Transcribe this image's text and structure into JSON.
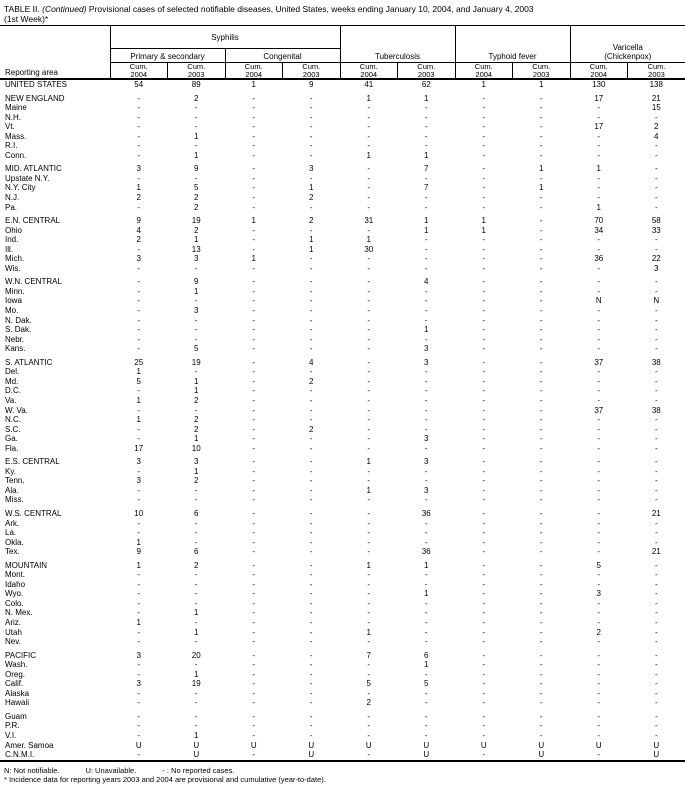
{
  "title": {
    "prefix": "TABLE II. ",
    "continued": "(Continued)",
    "rest": " Provisional cases of selected notifiable diseases, United States, weeks ending January 10, 2004, and January 4, 2003",
    "line2": "(1st Week)*"
  },
  "header": {
    "reporting_area": "Reporting area",
    "syphilis": "Syphilis",
    "primary_secondary": "Primary & secondary",
    "congenital": "Congenital",
    "tuberculosis": "Tuberculosis",
    "typhoid": "Typhoid fever",
    "varicella_line1": "Varicella",
    "varicella_line2": "(Chickenpox)",
    "cum_label": "Cum.",
    "years": [
      "2004",
      "2003"
    ]
  },
  "rows": [
    {
      "area": "UNITED STATES",
      "values": [
        "54",
        "89",
        "1",
        "9",
        "41",
        "62",
        "1",
        "1",
        "130",
        "138"
      ]
    },
    {
      "area": "NEW ENGLAND",
      "gap": true,
      "values": [
        "-",
        "2",
        "-",
        "-",
        "1",
        "1",
        "-",
        "-",
        "17",
        "21"
      ]
    },
    {
      "area": "Maine",
      "values": [
        "-",
        "-",
        "-",
        "-",
        "-",
        "-",
        "-",
        "-",
        "-",
        "15"
      ]
    },
    {
      "area": "N.H.",
      "values": [
        "-",
        "-",
        "-",
        "-",
        "-",
        "-",
        "-",
        "-",
        "-",
        "-"
      ]
    },
    {
      "area": "Vt.",
      "values": [
        "-",
        "-",
        "-",
        "-",
        "-",
        "-",
        "-",
        "-",
        "17",
        "2"
      ]
    },
    {
      "area": "Mass.",
      "values": [
        "-",
        "1",
        "-",
        "-",
        "-",
        "-",
        "-",
        "-",
        "-",
        "4"
      ]
    },
    {
      "area": "R.I.",
      "values": [
        "-",
        "-",
        "-",
        "-",
        "-",
        "-",
        "-",
        "-",
        "-",
        "-"
      ]
    },
    {
      "area": "Conn.",
      "values": [
        "-",
        "1",
        "-",
        "-",
        "1",
        "1",
        "-",
        "-",
        "-",
        "-"
      ]
    },
    {
      "area": "MID. ATLANTIC",
      "gap": true,
      "values": [
        "3",
        "9",
        "-",
        "3",
        "-",
        "7",
        "-",
        "1",
        "1",
        "-"
      ]
    },
    {
      "area": "Upstate N.Y.",
      "values": [
        "-",
        "-",
        "-",
        "-",
        "-",
        "-",
        "-",
        "-",
        "-",
        "-"
      ]
    },
    {
      "area": "N.Y. City",
      "values": [
        "1",
        "5",
        "-",
        "1",
        "-",
        "7",
        "-",
        "1",
        "-",
        "-"
      ]
    },
    {
      "area": "N.J.",
      "values": [
        "2",
        "2",
        "-",
        "2",
        "-",
        "-",
        "-",
        "-",
        "-",
        "-"
      ]
    },
    {
      "area": "Pa.",
      "values": [
        "-",
        "2",
        "-",
        "-",
        "-",
        "-",
        "-",
        "-",
        "1",
        "-"
      ]
    },
    {
      "area": "E.N. CENTRAL",
      "gap": true,
      "values": [
        "9",
        "19",
        "1",
        "2",
        "31",
        "1",
        "1",
        "-",
        "70",
        "58"
      ]
    },
    {
      "area": "Ohio",
      "values": [
        "4",
        "2",
        "-",
        "-",
        "-",
        "1",
        "1",
        "-",
        "34",
        "33"
      ]
    },
    {
      "area": "Ind.",
      "values": [
        "2",
        "1",
        "-",
        "1",
        "1",
        "-",
        "-",
        "-",
        "-",
        "-"
      ]
    },
    {
      "area": "Ill.",
      "values": [
        "-",
        "13",
        "-",
        "1",
        "30",
        "-",
        "-",
        "-",
        "-",
        "-"
      ]
    },
    {
      "area": "Mich.",
      "values": [
        "3",
        "3",
        "1",
        "-",
        "-",
        "-",
        "-",
        "-",
        "36",
        "22"
      ]
    },
    {
      "area": "Wis.",
      "values": [
        "-",
        "-",
        "-",
        "-",
        "-",
        "-",
        "-",
        "-",
        "-",
        "3"
      ]
    },
    {
      "area": "W.N. CENTRAL",
      "gap": true,
      "values": [
        "-",
        "9",
        "-",
        "-",
        "-",
        "4",
        "-",
        "-",
        "-",
        "-"
      ]
    },
    {
      "area": "Minn.",
      "values": [
        "-",
        "1",
        "-",
        "-",
        "-",
        "-",
        "-",
        "-",
        "-",
        "-"
      ]
    },
    {
      "area": "Iowa",
      "values": [
        "-",
        "-",
        "-",
        "-",
        "-",
        "-",
        "-",
        "-",
        "N",
        "N"
      ]
    },
    {
      "area": "Mo.",
      "values": [
        "-",
        "3",
        "-",
        "-",
        "-",
        "-",
        "-",
        "-",
        "-",
        "-"
      ]
    },
    {
      "area": "N. Dak.",
      "values": [
        "-",
        "-",
        "-",
        "-",
        "-",
        "-",
        "-",
        "-",
        "-",
        "-"
      ]
    },
    {
      "area": "S. Dak.",
      "values": [
        "-",
        "-",
        "-",
        "-",
        "-",
        "1",
        "-",
        "-",
        "-",
        "-"
      ]
    },
    {
      "area": "Nebr.",
      "values": [
        "-",
        "-",
        "-",
        "-",
        "-",
        "-",
        "-",
        "-",
        "-",
        "-"
      ]
    },
    {
      "area": "Kans.",
      "values": [
        "-",
        "5",
        "-",
        "-",
        "-",
        "3",
        "-",
        "-",
        "-",
        "-"
      ]
    },
    {
      "area": "S. ATLANTIC",
      "gap": true,
      "values": [
        "25",
        "19",
        "-",
        "4",
        "-",
        "3",
        "-",
        "-",
        "37",
        "38"
      ]
    },
    {
      "area": "Del.",
      "values": [
        "1",
        "-",
        "-",
        "-",
        "-",
        "-",
        "-",
        "-",
        "-",
        "-"
      ]
    },
    {
      "area": "Md.",
      "values": [
        "5",
        "1",
        "-",
        "2",
        "-",
        "-",
        "-",
        "-",
        "-",
        "-"
      ]
    },
    {
      "area": "D.C.",
      "values": [
        "-",
        "1",
        "-",
        "-",
        "-",
        "-",
        "-",
        "-",
        "-",
        "-"
      ]
    },
    {
      "area": "Va.",
      "values": [
        "1",
        "2",
        "-",
        "-",
        "-",
        "-",
        "-",
        "-",
        "-",
        "-"
      ]
    },
    {
      "area": "W. Va.",
      "values": [
        "-",
        "-",
        "-",
        "-",
        "-",
        "-",
        "-",
        "-",
        "37",
        "38"
      ]
    },
    {
      "area": "N.C.",
      "values": [
        "1",
        "2",
        "-",
        "-",
        "-",
        "-",
        "-",
        "-",
        "-",
        "-"
      ]
    },
    {
      "area": "S.C.",
      "values": [
        "-",
        "2",
        "-",
        "2",
        "-",
        "-",
        "-",
        "-",
        "-",
        "-"
      ]
    },
    {
      "area": "Ga.",
      "values": [
        "-",
        "1",
        "-",
        "-",
        "-",
        "3",
        "-",
        "-",
        "-",
        "-"
      ]
    },
    {
      "area": "Fla.",
      "values": [
        "17",
        "10",
        "-",
        "-",
        "-",
        "-",
        "-",
        "-",
        "-",
        "-"
      ]
    },
    {
      "area": "E.S. CENTRAL",
      "gap": true,
      "values": [
        "3",
        "3",
        "-",
        "-",
        "1",
        "3",
        "-",
        "-",
        "-",
        "-"
      ]
    },
    {
      "area": "Ky.",
      "values": [
        "-",
        "1",
        "-",
        "-",
        "-",
        "-",
        "-",
        "-",
        "-",
        "-"
      ]
    },
    {
      "area": "Tenn.",
      "values": [
        "3",
        "2",
        "-",
        "-",
        "-",
        "-",
        "-",
        "-",
        "-",
        "-"
      ]
    },
    {
      "area": "Ala.",
      "values": [
        "-",
        "-",
        "-",
        "-",
        "1",
        "3",
        "-",
        "-",
        "-",
        "-"
      ]
    },
    {
      "area": "Miss.",
      "values": [
        "-",
        "-",
        "-",
        "-",
        "-",
        "-",
        "-",
        "-",
        "-",
        "-"
      ]
    },
    {
      "area": "W.S. CENTRAL",
      "gap": true,
      "values": [
        "10",
        "6",
        "-",
        "-",
        "-",
        "36",
        "-",
        "-",
        "-",
        "21"
      ]
    },
    {
      "area": "Ark.",
      "values": [
        "-",
        "-",
        "-",
        "-",
        "-",
        "-",
        "-",
        "-",
        "-",
        "-"
      ]
    },
    {
      "area": "La.",
      "values": [
        "-",
        "-",
        "-",
        "-",
        "-",
        "-",
        "-",
        "-",
        "-",
        "-"
      ]
    },
    {
      "area": "Okla.",
      "values": [
        "1",
        "-",
        "-",
        "-",
        "-",
        "-",
        "-",
        "-",
        "-",
        "-"
      ]
    },
    {
      "area": "Tex.",
      "values": [
        "9",
        "6",
        "-",
        "-",
        "-",
        "36",
        "-",
        "-",
        "-",
        "21"
      ]
    },
    {
      "area": "MOUNTAIN",
      "gap": true,
      "values": [
        "1",
        "2",
        "-",
        "-",
        "1",
        "1",
        "-",
        "-",
        "5",
        "-"
      ]
    },
    {
      "area": "Mont.",
      "values": [
        "-",
        "-",
        "-",
        "-",
        "-",
        "-",
        "-",
        "-",
        "-",
        "-"
      ]
    },
    {
      "area": "Idaho",
      "values": [
        "-",
        "-",
        "-",
        "-",
        "-",
        "-",
        "-",
        "-",
        "-",
        "-"
      ]
    },
    {
      "area": "Wyo.",
      "values": [
        "-",
        "-",
        "-",
        "-",
        "-",
        "1",
        "-",
        "-",
        "3",
        "-"
      ]
    },
    {
      "area": "Colo.",
      "values": [
        "-",
        "-",
        "-",
        "-",
        "-",
        "-",
        "-",
        "-",
        "-",
        "-"
      ]
    },
    {
      "area": "N. Mex.",
      "values": [
        "-",
        "1",
        "-",
        "-",
        "-",
        "-",
        "-",
        "-",
        "-",
        "-"
      ]
    },
    {
      "area": "Ariz.",
      "values": [
        "1",
        "-",
        "-",
        "-",
        "-",
        "-",
        "-",
        "-",
        "-",
        "-"
      ]
    },
    {
      "area": "Utah",
      "values": [
        "-",
        "1",
        "-",
        "-",
        "1",
        "-",
        "-",
        "-",
        "2",
        "-"
      ]
    },
    {
      "area": "Nev.",
      "values": [
        "-",
        "-",
        "-",
        "-",
        "-",
        "-",
        "-",
        "-",
        "-",
        "-"
      ]
    },
    {
      "area": "PACIFIC",
      "gap": true,
      "values": [
        "3",
        "20",
        "-",
        "-",
        "7",
        "6",
        "-",
        "-",
        "-",
        "-"
      ]
    },
    {
      "area": "Wash.",
      "values": [
        "-",
        "-",
        "-",
        "-",
        "-",
        "1",
        "-",
        "-",
        "-",
        "-"
      ]
    },
    {
      "area": "Oreg.",
      "values": [
        "-",
        "1",
        "-",
        "-",
        "-",
        "-",
        "-",
        "-",
        "-",
        "-"
      ]
    },
    {
      "area": "Calif.",
      "values": [
        "3",
        "19",
        "-",
        "-",
        "5",
        "5",
        "-",
        "-",
        "-",
        "-"
      ]
    },
    {
      "area": "Alaska",
      "values": [
        "-",
        "-",
        "-",
        "-",
        "-",
        "-",
        "-",
        "-",
        "-",
        "-"
      ]
    },
    {
      "area": "Hawaii",
      "values": [
        "-",
        "-",
        "-",
        "-",
        "2",
        "-",
        "-",
        "-",
        "-",
        "-"
      ]
    },
    {
      "area": "Guam",
      "gap": true,
      "values": [
        "-",
        "-",
        "-",
        "-",
        "-",
        "-",
        "-",
        "-",
        "-",
        "-"
      ]
    },
    {
      "area": "P.R.",
      "values": [
        "-",
        "-",
        "-",
        "-",
        "-",
        "-",
        "-",
        "-",
        "-",
        "-"
      ]
    },
    {
      "area": "V.I.",
      "values": [
        "-",
        "1",
        "-",
        "-",
        "-",
        "-",
        "-",
        "-",
        "-",
        "-"
      ]
    },
    {
      "area": "Amer. Samoa",
      "values": [
        "U",
        "U",
        "U",
        "U",
        "U",
        "U",
        "U",
        "U",
        "U",
        "U"
      ]
    },
    {
      "area": "C.N.M.I.",
      "values": [
        "-",
        "U",
        "-",
        "U",
        "-",
        "U",
        "-",
        "U",
        "-",
        "U"
      ]
    }
  ],
  "footnotes": {
    "legend": [
      "N: Not notifiable.",
      "U: Unavailable.",
      "- : No reported cases."
    ],
    "asterisk": "* Incidence data for reporting years 2003 and 2004 are provisional and cumulative (year-to-date)."
  }
}
